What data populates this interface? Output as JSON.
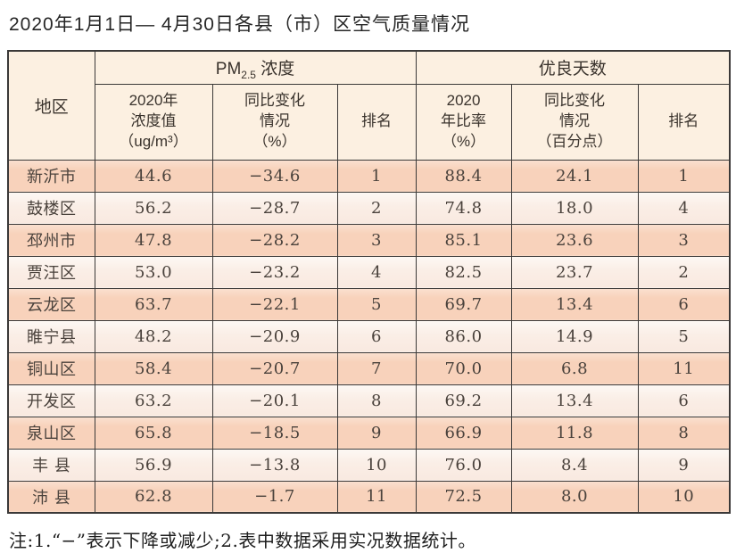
{
  "page": {
    "title": "2020年1月1日— 4月30日各县（市）区空气质量情况",
    "footnote": "注:1.“−”表示下降或减少;2.表中数据采用实况数据统计。"
  },
  "colors": {
    "header_bg": "#fcf0e1",
    "row_dark": "#f8d2bb",
    "row_light": "#faeee6",
    "border": "#3b3938",
    "text": "#4a423c"
  },
  "table": {
    "header": {
      "region": "地区",
      "pm25_group": {
        "prefix": "PM",
        "sub": "2.5",
        "suffix": " 浓度"
      },
      "good_days_group": "优良天数",
      "pm25_value": "2020年\n浓度值\n（ug/m³）",
      "pm25_change": "同比变化\n情况\n（%）",
      "pm25_rank": "排名",
      "ratio_value": "2020\n年比率\n（%）",
      "ratio_change": "同比变化\n情况\n（百分点）",
      "ratio_rank": "排名"
    },
    "rows": [
      {
        "region": "新沂市",
        "pm25_value": "44.6",
        "pm25_change": "−34.6",
        "pm25_rank": "1",
        "ratio_value": "88.4",
        "ratio_change": "24.1",
        "ratio_rank": "1"
      },
      {
        "region": "鼓楼区",
        "pm25_value": "56.2",
        "pm25_change": "−28.7",
        "pm25_rank": "2",
        "ratio_value": "74.8",
        "ratio_change": "18.0",
        "ratio_rank": "4"
      },
      {
        "region": "邳州市",
        "pm25_value": "47.8",
        "pm25_change": "−28.2",
        "pm25_rank": "3",
        "ratio_value": "85.1",
        "ratio_change": "23.6",
        "ratio_rank": "3"
      },
      {
        "region": "贾汪区",
        "pm25_value": "53.0",
        "pm25_change": "−23.2",
        "pm25_rank": "4",
        "ratio_value": "82.5",
        "ratio_change": "23.7",
        "ratio_rank": "2"
      },
      {
        "region": "云龙区",
        "pm25_value": "63.7",
        "pm25_change": "−22.1",
        "pm25_rank": "5",
        "ratio_value": "69.7",
        "ratio_change": "13.4",
        "ratio_rank": "6"
      },
      {
        "region": "睢宁县",
        "pm25_value": "48.2",
        "pm25_change": "−20.9",
        "pm25_rank": "6",
        "ratio_value": "86.0",
        "ratio_change": "14.9",
        "ratio_rank": "5"
      },
      {
        "region": "铜山区",
        "pm25_value": "58.4",
        "pm25_change": "−20.7",
        "pm25_rank": "7",
        "ratio_value": "70.0",
        "ratio_change": "6.8",
        "ratio_rank": "11"
      },
      {
        "region": "开发区",
        "pm25_value": "63.2",
        "pm25_change": "−20.1",
        "pm25_rank": "8",
        "ratio_value": "69.2",
        "ratio_change": "13.4",
        "ratio_rank": "6"
      },
      {
        "region": "泉山区",
        "pm25_value": "65.8",
        "pm25_change": "−18.5",
        "pm25_rank": "9",
        "ratio_value": "66.9",
        "ratio_change": "11.8",
        "ratio_rank": "8"
      },
      {
        "region": "丰 县",
        "pm25_value": "56.9",
        "pm25_change": "−13.8",
        "pm25_rank": "10",
        "ratio_value": "76.0",
        "ratio_change": "8.4",
        "ratio_rank": "9"
      },
      {
        "region": "沛 县",
        "pm25_value": "62.8",
        "pm25_change": "−1.7",
        "pm25_rank": "11",
        "ratio_value": "72.5",
        "ratio_change": "8.0",
        "ratio_rank": "10"
      }
    ]
  }
}
